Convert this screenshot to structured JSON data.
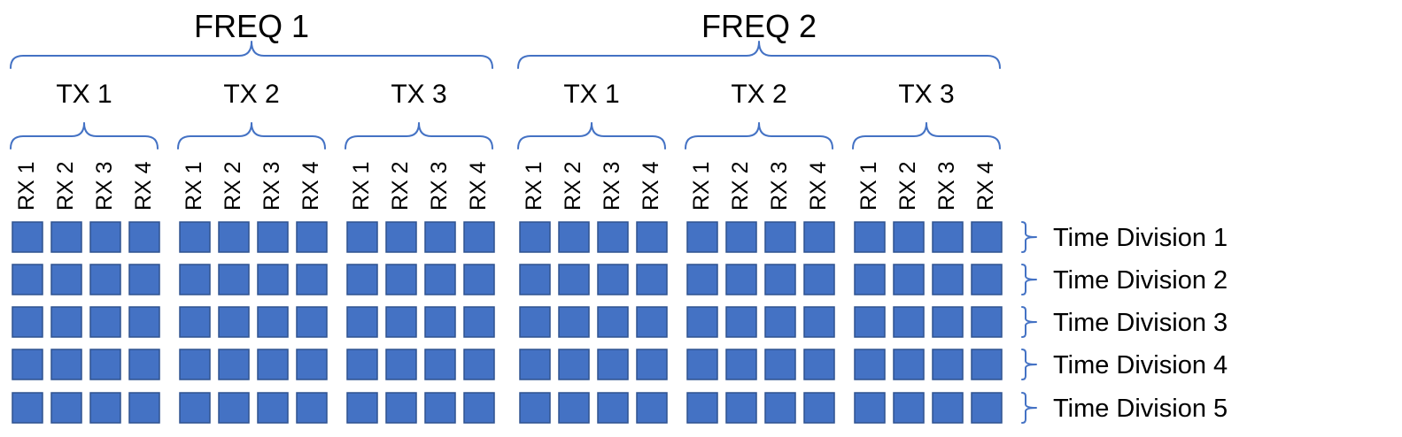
{
  "diagram": {
    "frequencies": [
      {
        "label": "FREQ 1",
        "transmitters": [
          "TX 1",
          "TX 2",
          "TX 3"
        ]
      },
      {
        "label": "FREQ 2",
        "transmitters": [
          "TX 1",
          "TX 2",
          "TX 3"
        ]
      }
    ],
    "receivers": [
      "RX 1",
      "RX 2",
      "RX 3",
      "RX 4"
    ],
    "time_divisions": [
      "Time Division 1",
      "Time Division 2",
      "Time Division 3",
      "Time Division 4",
      "Time Division 5"
    ],
    "colors": {
      "cell_fill": "#4472c4",
      "cell_border": "#2f528f",
      "brace": "#4472c4",
      "text": "#000000"
    }
  }
}
